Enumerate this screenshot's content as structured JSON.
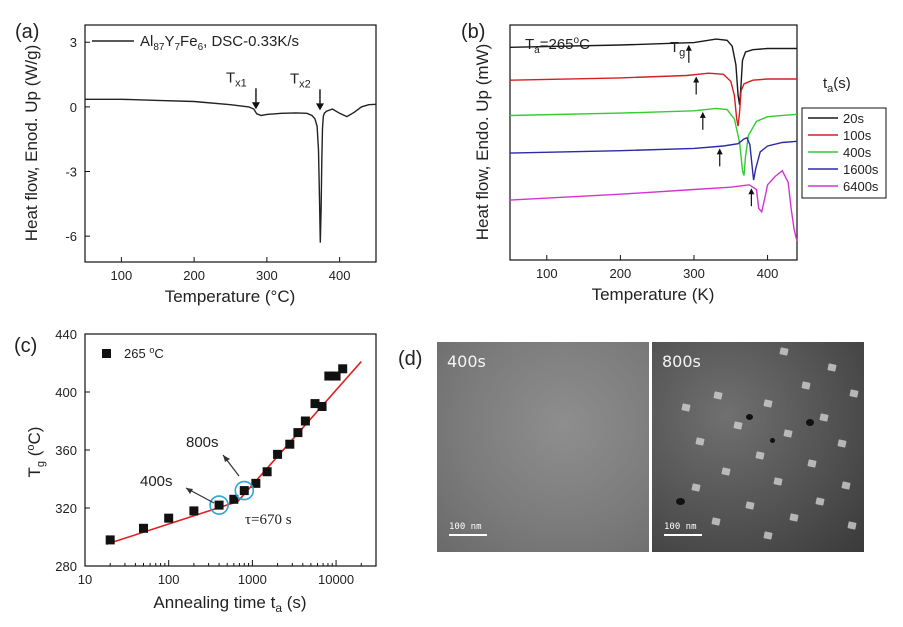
{
  "chart_data": [
    {
      "type": "line",
      "panel_label": "(a)",
      "title": "",
      "xlabel": "Temperature (°C)",
      "ylabel": "Heat flow, Enod. Up (W/g)",
      "xlim": [
        50,
        450
      ],
      "ylim": [
        -7.2,
        3.8
      ],
      "xticks": [
        100,
        200,
        300,
        400
      ],
      "yticks": [
        3,
        0,
        -3,
        -6
      ],
      "ytick_labels": [
        "3",
        "0",
        "-3",
        "-6"
      ],
      "legend": "Al87Y7Fe6, DSC-0.33K/s",
      "legend_parts": {
        "base": "Al",
        "s1": "87",
        "b2": "Y",
        "s2": "7",
        "b3": "Fe",
        "s3": "6",
        "rest": ", DSC-0.33K/s"
      },
      "annotations": [
        {
          "base": "T",
          "sub": "x1",
          "x": 285,
          "y": -0.25
        },
        {
          "base": "T",
          "sub": "x2",
          "x": 373,
          "y": -0.3
        }
      ],
      "series": [
        {
          "name": "DSC",
          "color": "#222222",
          "x": [
            50,
            100,
            150,
            200,
            250,
            275,
            282,
            286,
            292,
            300,
            320,
            340,
            355,
            362,
            366,
            369,
            371,
            372.5,
            373.5,
            374.5,
            375.5,
            376.5,
            377.5,
            379,
            382,
            390,
            400,
            410,
            420,
            430,
            440,
            450
          ],
          "y": [
            0.35,
            0.35,
            0.3,
            0.25,
            0.1,
            0.0,
            -0.1,
            -0.32,
            -0.4,
            -0.35,
            -0.3,
            -0.28,
            -0.3,
            -0.4,
            -0.55,
            -0.9,
            -2.0,
            -4.5,
            -6.3,
            -4.8,
            -2.5,
            -1.0,
            -0.45,
            -0.3,
            -0.2,
            -0.1,
            -0.3,
            -0.45,
            -0.25,
            0.0,
            0.1,
            0.12
          ]
        }
      ]
    },
    {
      "type": "line",
      "panel_label": "(b)",
      "title": "",
      "xlabel": "Temperature (K)",
      "ylabel": "Heat flow, Endo. Up (mW)",
      "xlim": [
        50,
        440
      ],
      "ylim": [
        0,
        10
      ],
      "xticks": [
        100,
        200,
        300,
        400
      ],
      "text": {
        "base": "T",
        "sub": "a",
        "rest": "=265",
        "sup": "o",
        "unit": "C"
      },
      "tg_label": {
        "base": "T",
        "sub": "g"
      },
      "legend_title": {
        "base": "t",
        "sub": "a",
        "rest": "(s)"
      },
      "tg_arrows_x": [
        293,
        303,
        312,
        335,
        378
      ],
      "series": [
        {
          "name": "20s",
          "color": "#1a1a1a",
          "x": [
            50,
            200,
            300,
            330,
            345,
            352,
            357,
            360,
            362,
            364,
            366,
            370,
            380,
            400,
            440
          ],
          "y": [
            9.05,
            9.15,
            9.25,
            9.4,
            9.35,
            9.1,
            8.3,
            7.0,
            6.6,
            7.5,
            8.5,
            8.85,
            8.95,
            9.0,
            9.0
          ]
        },
        {
          "name": "100s",
          "color": "#d42020",
          "x": [
            50,
            200,
            290,
            320,
            340,
            350,
            355,
            358,
            360,
            362,
            364,
            368,
            380,
            400,
            440
          ],
          "y": [
            7.65,
            7.75,
            7.85,
            7.95,
            7.9,
            7.6,
            7.0,
            6.0,
            5.7,
            6.3,
            7.2,
            7.5,
            7.65,
            7.7,
            7.7
          ]
        },
        {
          "name": "400s",
          "color": "#33cc33",
          "x": [
            50,
            200,
            300,
            330,
            345,
            355,
            362,
            366,
            368,
            370,
            374,
            385,
            400,
            440
          ],
          "y": [
            6.15,
            6.25,
            6.35,
            6.45,
            6.4,
            6.0,
            5.0,
            3.8,
            3.6,
            4.4,
            5.3,
            5.9,
            6.1,
            6.2
          ]
        },
        {
          "name": "1600s",
          "color": "#2b2ba8",
          "x": [
            50,
            200,
            300,
            340,
            360,
            368,
            372,
            376,
            379,
            381,
            384,
            390,
            400,
            420,
            440
          ],
          "y": [
            4.55,
            4.65,
            4.75,
            4.85,
            4.95,
            5.15,
            5.2,
            4.9,
            4.0,
            3.4,
            3.9,
            4.6,
            4.85,
            5.0,
            5.05
          ]
        },
        {
          "name": "6400s",
          "color": "#d433d4",
          "x": [
            50,
            200,
            300,
            350,
            375,
            385,
            388,
            392,
            396,
            400,
            410,
            420,
            428,
            432,
            436,
            440
          ],
          "y": [
            2.55,
            2.8,
            3.0,
            3.1,
            3.2,
            3.0,
            2.2,
            2.05,
            2.6,
            3.2,
            3.55,
            3.8,
            3.3,
            2.2,
            1.3,
            0.8
          ]
        }
      ]
    },
    {
      "type": "scatter",
      "panel_label": "(c)",
      "title": "",
      "xlabel": "Annealing time t_a (s)",
      "xlabel_parts": {
        "before": "Annealing time t",
        "sub": "a",
        "after": " (s)"
      },
      "ylabel": "T_g (°C)",
      "ylabel_parts": {
        "base": "T",
        "sub": "g",
        "rest": " (",
        "sup": "o",
        "unit": "C)"
      },
      "xscale": "log",
      "xlim": [
        10,
        30000
      ],
      "ylim": [
        280,
        440
      ],
      "xticks": [
        10,
        100,
        1000,
        10000
      ],
      "xtick_labels": [
        "10",
        "100",
        "1000",
        "10000"
      ],
      "yticks": [
        280,
        320,
        360,
        400,
        440
      ],
      "legend": "265 °C",
      "legend_parts": {
        "num": "265 ",
        "sup": "o",
        "unit": "C"
      },
      "annotations": [
        "400s",
        "800s",
        "τ=670 s"
      ],
      "markers": {
        "shape": "square",
        "color": "#111111"
      },
      "x": [
        20,
        50,
        100,
        200,
        400,
        600,
        800,
        1100,
        1500,
        2000,
        2800,
        3500,
        4300,
        5600,
        6800,
        8200,
        10000,
        12000
      ],
      "y": [
        298,
        306,
        313,
        318,
        322,
        326,
        332,
        337,
        345,
        357,
        364,
        372,
        380,
        392,
        390,
        411,
        411,
        416
      ],
      "fit_lines": [
        {
          "x": [
            18,
            670
          ],
          "y": [
            295,
            324.5
          ],
          "color": "#e02020"
        },
        {
          "x": [
            670,
            20000
          ],
          "y": [
            324.5,
            421
          ],
          "color": "#e02020"
        }
      ],
      "highlight_points": [
        {
          "x": 400,
          "y": 322
        },
        {
          "x": 800,
          "y": 332
        }
      ]
    }
  ],
  "micrographs": [
    {
      "label": "400s",
      "scale_text": "100 nm"
    },
    {
      "label": "800s",
      "scale_text": "100 nm"
    }
  ],
  "panel_d_label": "(d)"
}
